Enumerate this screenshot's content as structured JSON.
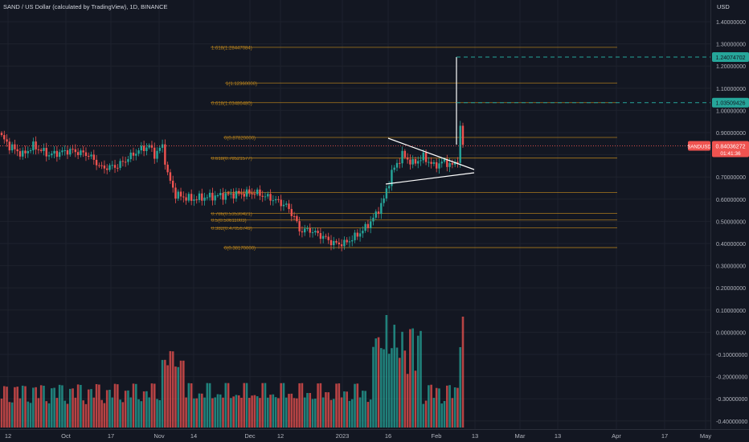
{
  "title": "SAND / US Dollar (calculated by TradingView), 1D, BINANCE",
  "currency": "USD",
  "price_ticks": [
    "1.40000000",
    "1.30000000",
    "1.20000000",
    "1.10000000",
    "1.00000000",
    "0.90000000",
    "0.80000000",
    "0.70000000",
    "0.60000000",
    "0.50000000",
    "0.40000000",
    "0.30000000",
    "0.20000000",
    "0.10000000",
    "0.00000000",
    "-0.10000000",
    "-0.20000000",
    "-0.30000000",
    "-0.40000000"
  ],
  "time_ticks": [
    "12",
    "Oct",
    "17",
    "Nov",
    "14",
    "Dec",
    "12",
    "2023",
    "16",
    "Feb",
    "13",
    "Mar",
    "13",
    "Apr",
    "17",
    "May"
  ],
  "fib_levels": [
    {
      "label": "1.618(1.28447084)",
      "price": 1.28447084
    },
    {
      "label": "1(1.12360000)",
      "price": 1.1236
    },
    {
      "label": "0.618(1.03486480)",
      "price": 1.0348648
    },
    {
      "label": "0(0.87820000)",
      "price": 0.8782
    },
    {
      "label": "0.618(0.78521577)",
      "price": 0.78521577
    },
    {
      "label": "1(0.63000000)",
      "price": 0.63
    },
    {
      "label": "0.786(0.53530421)",
      "price": 0.53530421
    },
    {
      "label": "0.5(0.50611003)",
      "price": 0.50611003
    },
    {
      "label": "0.382(0.47056749)",
      "price": 0.47056749
    },
    {
      "label": "0(0.38170000)",
      "price": 0.3817
    }
  ],
  "targets": [
    {
      "label": "1.24074702",
      "value": 1.24074702
    },
    {
      "label": "1.03509426",
      "value": 1.03509426
    }
  ],
  "current_price": {
    "symbol": "SANDUSD",
    "price_label": "0.84036272",
    "value": 0.84036272,
    "countdown": "01:41:36"
  },
  "colors": {
    "background": "#131722",
    "up": "#26a69a",
    "down": "#ef5350",
    "fib": "#c58b1c",
    "target": "#26a69a",
    "text": "#b2b5be",
    "pattern": "#ffffff"
  },
  "chart_data": {
    "type": "candlestick",
    "symbol": "SANDUSD",
    "interval": "1D",
    "y_range": [
      -0.42,
      1.47
    ],
    "x_start": "2022-09-12",
    "x_end": "2023-05-01",
    "ohlc_sample": [
      {
        "date": "2022-09-12",
        "open": 0.88,
        "high": 0.89,
        "low": 0.83,
        "close": 0.85
      },
      {
        "date": "2022-09-20",
        "open": 0.85,
        "high": 0.87,
        "low": 0.82,
        "close": 0.83
      },
      {
        "date": "2022-09-27",
        "open": 0.82,
        "high": 0.83,
        "low": 0.79,
        "close": 0.8
      },
      {
        "date": "2022-10-03",
        "open": 0.8,
        "high": 0.82,
        "low": 0.79,
        "close": 0.81
      },
      {
        "date": "2022-10-17",
        "open": 0.75,
        "high": 0.76,
        "low": 0.7,
        "close": 0.72
      },
      {
        "date": "2022-10-29",
        "open": 0.8,
        "high": 0.87,
        "low": 0.79,
        "close": 0.86
      },
      {
        "date": "2022-11-06",
        "open": 0.83,
        "high": 0.84,
        "low": 0.75,
        "close": 0.76
      },
      {
        "date": "2022-11-09",
        "open": 0.73,
        "high": 0.74,
        "low": 0.58,
        "close": 0.6
      },
      {
        "date": "2022-12-01",
        "open": 0.62,
        "high": 0.64,
        "low": 0.61,
        "close": 0.63
      },
      {
        "date": "2022-12-15",
        "open": 0.57,
        "high": 0.58,
        "low": 0.52,
        "close": 0.53
      },
      {
        "date": "2022-12-30",
        "open": 0.39,
        "high": 0.4,
        "low": 0.38,
        "close": 0.39
      },
      {
        "date": "2023-01-09",
        "open": 0.45,
        "high": 0.5,
        "low": 0.44,
        "close": 0.49
      },
      {
        "date": "2023-01-14",
        "open": 0.58,
        "high": 0.7,
        "low": 0.56,
        "close": 0.68
      },
      {
        "date": "2023-01-20",
        "open": 0.8,
        "high": 0.85,
        "low": 0.76,
        "close": 0.78
      },
      {
        "date": "2023-01-31",
        "open": 0.75,
        "high": 0.8,
        "low": 0.71,
        "close": 0.77
      },
      {
        "date": "2023-02-06",
        "open": 0.74,
        "high": 0.79,
        "low": 0.72,
        "close": 0.77
      },
      {
        "date": "2023-02-07",
        "open": 0.77,
        "high": 0.93,
        "low": 0.76,
        "close": 0.92
      },
      {
        "date": "2023-02-08",
        "open": 0.92,
        "high": 0.93,
        "low": 0.82,
        "close": 0.84
      }
    ]
  }
}
